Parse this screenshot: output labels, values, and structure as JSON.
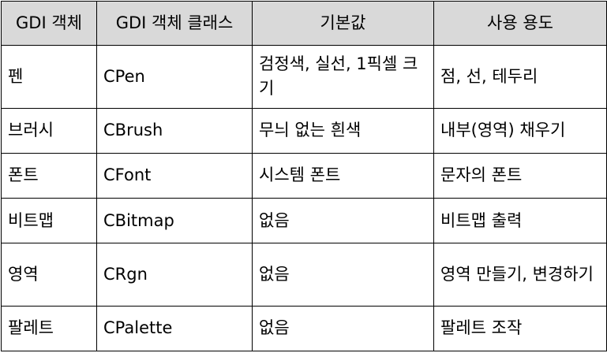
{
  "table": {
    "headers": [
      "GDI 객체",
      "GDI 객체 클래스",
      "기본값",
      "사용 용도"
    ],
    "rows": [
      [
        "펜",
        "CPen",
        "검정색, 실선, 1픽셀 크기",
        "점, 선, 테두리"
      ],
      [
        "브러시",
        "CBrush",
        "무늬 없는 흰색",
        "내부(영역) 채우기"
      ],
      [
        "폰트",
        "CFont",
        "시스템 폰트",
        "문자의 폰트"
      ],
      [
        "비트맵",
        "CBitmap",
        "없음",
        "비트맵 출력"
      ],
      [
        "영역",
        "CRgn",
        "없음",
        "영역 만들기, 변경하기"
      ],
      [
        "팔레트",
        "CPalette",
        "없음",
        "팔레트 조작"
      ]
    ],
    "header_background": "#d9d9d9",
    "border_color": "#000000"
  }
}
